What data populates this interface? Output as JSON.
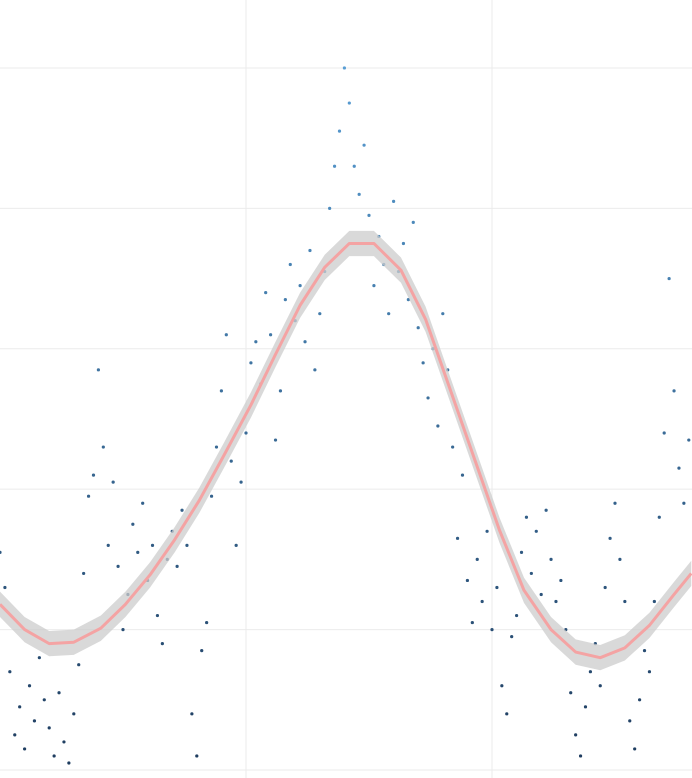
{
  "chart_data": {
    "type": "scatter",
    "x": [
      0.0,
      0.02,
      0.04,
      0.06,
      0.08,
      0.1,
      0.12,
      0.14,
      0.16,
      0.18,
      0.2,
      0.22,
      0.24,
      0.26,
      0.28,
      0.3,
      0.32,
      0.34,
      0.36,
      0.38,
      0.4,
      0.42,
      0.44,
      0.46,
      0.48,
      0.5,
      0.52,
      0.54,
      0.56,
      0.58,
      0.6,
      0.62,
      0.64,
      0.66,
      0.68,
      0.7,
      0.72,
      0.74,
      0.76,
      0.78,
      0.8,
      0.82,
      0.84,
      0.86,
      0.88,
      0.9,
      0.92,
      0.94,
      0.96,
      0.98,
      1.0,
      1.02,
      1.04,
      1.06,
      1.08,
      1.1,
      1.12,
      1.14,
      1.16,
      1.18,
      1.2,
      1.22,
      1.24,
      1.26,
      1.28,
      1.3,
      1.32,
      1.34,
      1.36,
      1.38,
      1.4,
      1.42,
      1.44,
      1.46,
      1.48,
      1.5,
      1.52,
      1.54,
      1.56,
      1.58,
      1.6,
      1.62,
      1.64,
      1.66,
      1.68,
      1.7,
      1.72,
      1.74,
      1.76,
      1.78,
      1.8,
      1.82,
      1.84,
      1.86,
      1.88,
      1.9,
      1.92,
      1.94,
      1.96,
      1.98,
      2.0,
      2.02,
      2.04,
      2.06,
      2.08,
      2.1,
      2.12,
      2.14,
      2.16,
      2.18,
      2.2,
      2.22,
      2.24,
      2.26,
      2.28,
      2.3,
      2.32,
      2.34,
      2.36,
      2.38,
      2.4,
      2.42,
      2.44,
      2.46,
      2.48,
      2.5,
      2.52,
      2.54,
      2.56,
      2.58,
      2.6,
      2.62,
      2.64,
      2.66,
      2.68,
      2.7,
      2.72,
      2.74,
      2.76,
      2.78,
      2.8
    ],
    "y": [
      1.55,
      1.3,
      0.7,
      0.25,
      0.45,
      0.15,
      0.6,
      0.35,
      0.8,
      0.5,
      0.3,
      0.1,
      0.55,
      0.2,
      0.05,
      0.4,
      0.75,
      1.4,
      1.95,
      2.1,
      2.85,
      2.3,
      1.6,
      2.05,
      1.45,
      1.0,
      1.25,
      1.75,
      1.55,
      1.9,
      1.35,
      1.6,
      1.1,
      0.9,
      1.5,
      1.7,
      1.45,
      1.85,
      1.6,
      0.4,
      0.1,
      0.85,
      1.05,
      1.95,
      2.3,
      2.7,
      3.1,
      2.2,
      1.6,
      2.05,
      2.4,
      2.9,
      3.05,
      2.75,
      3.4,
      3.1,
      2.35,
      2.7,
      3.35,
      3.6,
      3.2,
      3.45,
      3.05,
      3.7,
      2.85,
      3.25,
      3.55,
      4.0,
      4.3,
      4.55,
      5.0,
      4.75,
      4.3,
      4.1,
      4.45,
      3.95,
      3.45,
      3.8,
      3.6,
      3.25,
      4.05,
      3.55,
      3.75,
      3.35,
      3.9,
      3.15,
      2.9,
      2.65,
      3.0,
      2.45,
      3.25,
      2.85,
      2.3,
      1.65,
      2.1,
      1.35,
      1.05,
      1.5,
      1.2,
      1.7,
      1.0,
      1.3,
      0.6,
      0.4,
      0.95,
      1.1,
      1.55,
      1.8,
      1.4,
      1.7,
      1.25,
      1.85,
      1.5,
      1.2,
      1.35,
      1.0,
      0.55,
      0.25,
      0.1,
      0.45,
      0.7,
      0.9,
      0.6,
      1.3,
      1.65,
      1.9,
      1.5,
      1.2,
      0.35,
      0.15,
      0.5,
      0.85,
      0.7,
      1.2,
      1.8,
      2.4,
      3.5,
      2.7,
      2.15,
      1.9,
      2.35
    ],
    "color_low": "#1d3a5c",
    "color_high": "#5fa8e0",
    "xlim": [
      0,
      2.813
    ],
    "ylim": [
      -0.057,
      5.484
    ],
    "xticks": [
      1,
      2
    ],
    "yticks": [
      0,
      1,
      2,
      3,
      4,
      5
    ],
    "grid": true,
    "smooth": {
      "x": [
        0,
        0.1,
        0.2,
        0.3,
        0.41,
        0.51,
        0.61,
        0.71,
        0.81,
        0.91,
        1.02,
        1.12,
        1.22,
        1.32,
        1.42,
        1.52,
        1.63,
        1.73,
        1.83,
        1.93,
        2.03,
        2.13,
        2.24,
        2.34,
        2.44,
        2.54,
        2.64,
        2.74,
        2.81
      ],
      "y": [
        1.18,
        1.0,
        0.9,
        0.91,
        1.01,
        1.18,
        1.39,
        1.64,
        1.92,
        2.24,
        2.6,
        2.96,
        3.31,
        3.58,
        3.75,
        3.75,
        3.56,
        3.21,
        2.71,
        2.21,
        1.71,
        1.28,
        1.0,
        0.84,
        0.8,
        0.87,
        1.03,
        1.25,
        1.4
      ],
      "color": "#f4a3a3",
      "ci": 0.09,
      "ci_color": "#cccccc"
    }
  }
}
